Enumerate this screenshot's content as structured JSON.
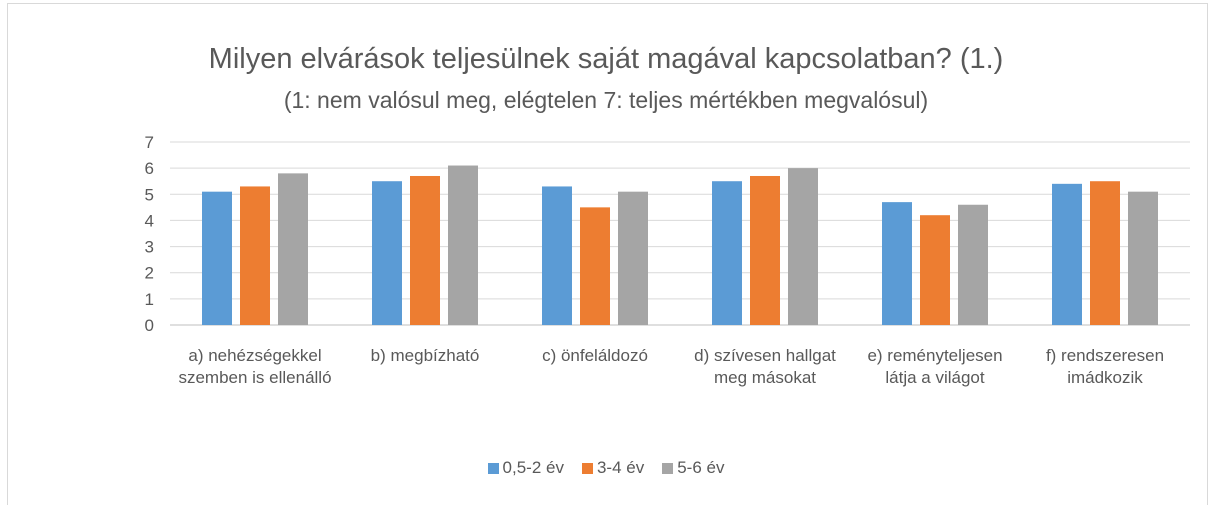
{
  "chart_data": {
    "type": "bar",
    "title": "Milyen elvárások teljesülnek saját magával kapcsolatban? (1.)",
    "subtitle": "(1: nem valósul meg, elégtelen 7: teljes mértékben megvalósul)",
    "categories": [
      "a) nehézségekkel szemben is ellenálló",
      "b) megbízható",
      "c) önfeláldozó",
      "d) szívesen hallgat meg másokat",
      "e) reményteljesen látja a világot",
      "f) rendszeresen imádkozik"
    ],
    "series": [
      {
        "name": "0,5-2 év",
        "color": "#5b9bd5",
        "values": [
          5.1,
          5.5,
          5.3,
          5.5,
          4.7,
          5.4
        ]
      },
      {
        "name": "3-4 év",
        "color": "#ed7d31",
        "values": [
          5.3,
          5.7,
          4.5,
          5.7,
          4.2,
          5.5
        ]
      },
      {
        "name": "5-6 év",
        "color": "#a5a5a5",
        "values": [
          5.8,
          6.1,
          5.1,
          6.0,
          4.6,
          5.1
        ]
      }
    ],
    "ylim": [
      0,
      7
    ],
    "yticks": [
      0,
      1,
      2,
      3,
      4,
      5,
      6,
      7
    ],
    "grid": true,
    "legend": "bottom"
  }
}
